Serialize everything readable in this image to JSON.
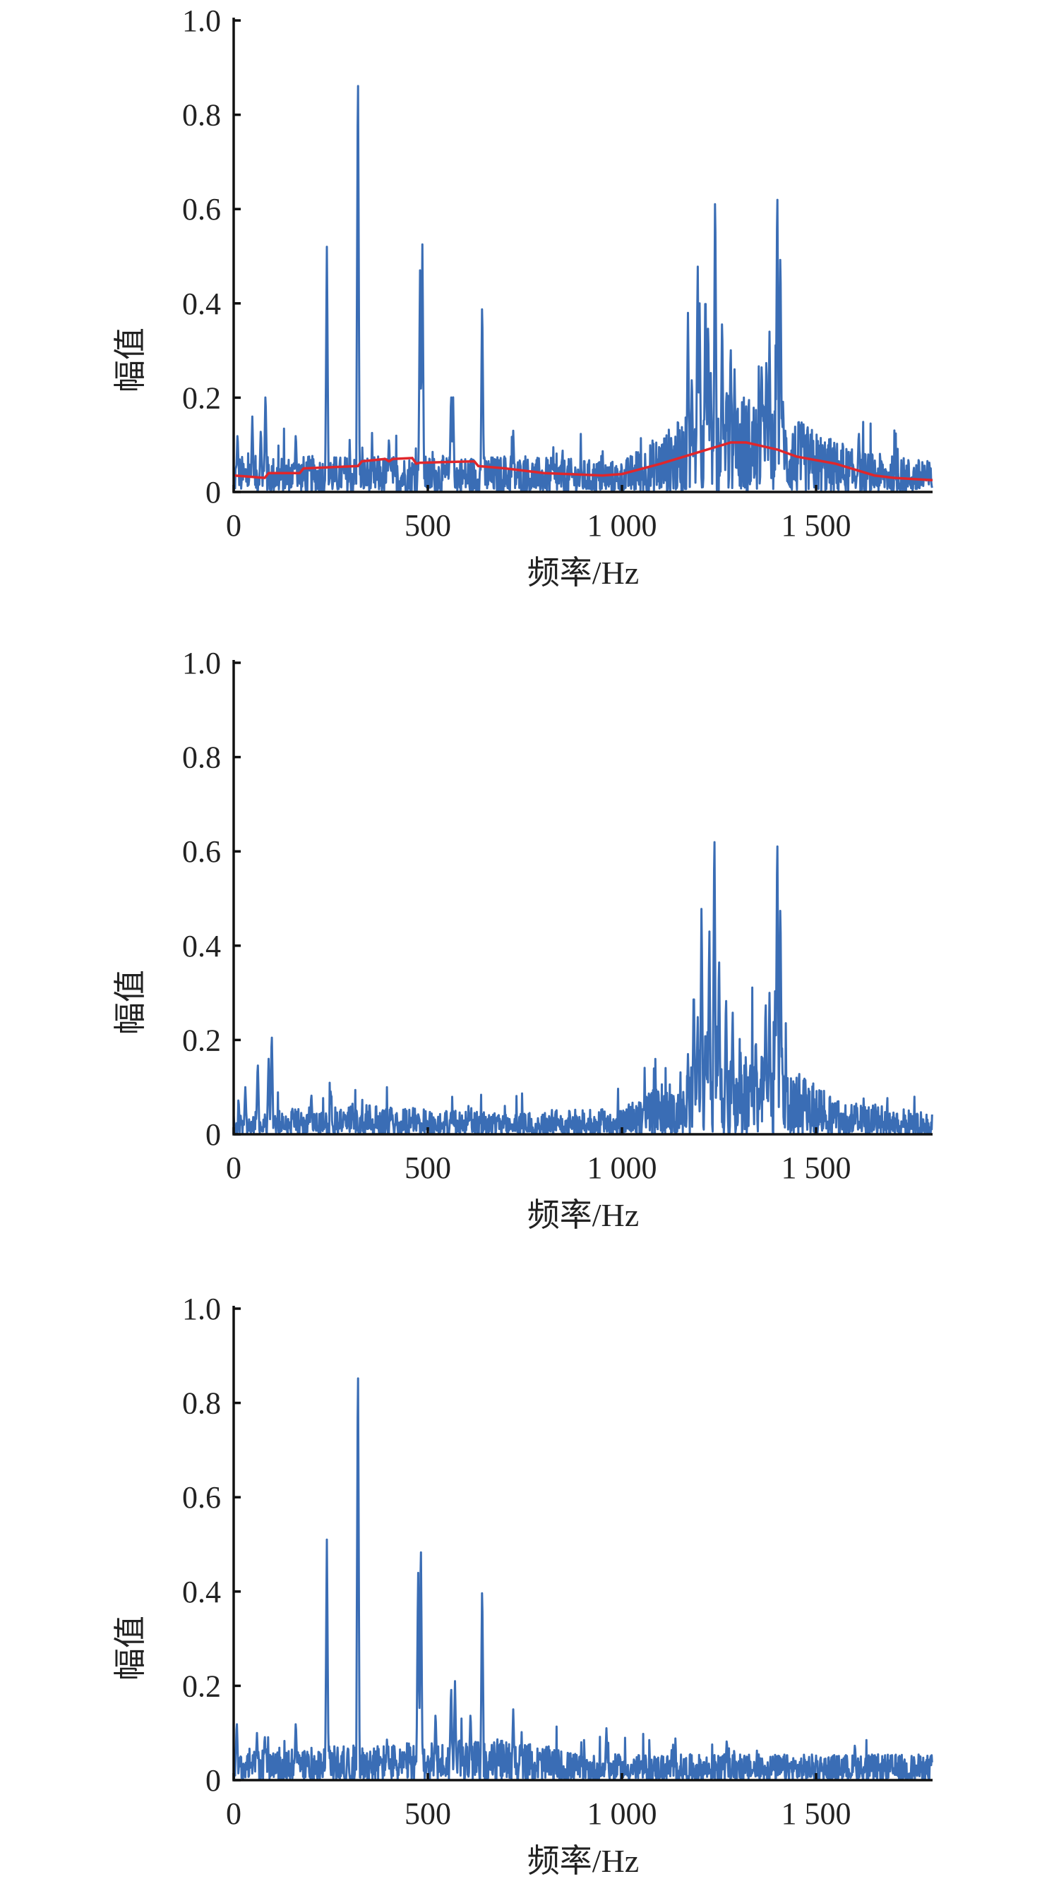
{
  "chart_data": [
    {
      "type": "line",
      "xlabel": "频率/Hz",
      "ylabel": "幅值",
      "xlim": [
        0,
        1800
      ],
      "ylim": [
        0,
        1.0
      ],
      "xticks": [
        0,
        500,
        1000,
        1500
      ],
      "xtick_labels": [
        "0",
        "500",
        "1 000",
        "1 500"
      ],
      "yticks": [
        0,
        0.2,
        0.4,
        0.6,
        0.8,
        1.0
      ],
      "ytick_labels": [
        "0",
        "0.2",
        "0.4",
        "0.6",
        "0.8",
        "1.0"
      ],
      "grid": false,
      "series_color": "#3a6db5",
      "noise_floor": [
        [
          0,
          0.035
        ],
        [
          700,
          0.035
        ],
        [
          1000,
          0.03
        ],
        [
          1150,
          0.07
        ],
        [
          1300,
          0.1
        ],
        [
          1450,
          0.07
        ],
        [
          1600,
          0.04
        ],
        [
          1800,
          0.03
        ]
      ],
      "peaks": [
        [
          10,
          0.13
        ],
        [
          48,
          0.16
        ],
        [
          70,
          0.14
        ],
        [
          82,
          0.22
        ],
        [
          160,
          0.13
        ],
        [
          240,
          0.52
        ],
        [
          320,
          0.945
        ],
        [
          400,
          0.12
        ],
        [
          480,
          0.47
        ],
        [
          486,
          0.525
        ],
        [
          560,
          0.22
        ],
        [
          565,
          0.21
        ],
        [
          640,
          0.425
        ],
        [
          720,
          0.13
        ],
        [
          1170,
          0.38
        ],
        [
          1180,
          0.26
        ],
        [
          1195,
          0.5
        ],
        [
          1200,
          0.4
        ],
        [
          1215,
          0.46
        ],
        [
          1222,
          0.38
        ],
        [
          1240,
          0.67
        ],
        [
          1258,
          0.39
        ],
        [
          1270,
          0.23
        ],
        [
          1280,
          0.33
        ],
        [
          1290,
          0.26
        ],
        [
          1360,
          0.29
        ],
        [
          1372,
          0.3
        ],
        [
          1380,
          0.34
        ],
        [
          1400,
          0.68
        ],
        [
          1408,
          0.54
        ],
        [
          1415,
          0.2
        ],
        [
          1610,
          0.135
        ]
      ],
      "envelope": {
        "color": "#e0262b",
        "points": [
          [
            0,
            0.035
          ],
          [
            80,
            0.03
          ],
          [
            90,
            0.04
          ],
          [
            170,
            0.04
          ],
          [
            180,
            0.05
          ],
          [
            320,
            0.055
          ],
          [
            330,
            0.065
          ],
          [
            390,
            0.07
          ],
          [
            400,
            0.065
          ],
          [
            410,
            0.07
          ],
          [
            460,
            0.072
          ],
          [
            470,
            0.06
          ],
          [
            480,
            0.062
          ],
          [
            620,
            0.065
          ],
          [
            630,
            0.055
          ],
          [
            700,
            0.05
          ],
          [
            800,
            0.04
          ],
          [
            950,
            0.035
          ],
          [
            1000,
            0.038
          ],
          [
            1100,
            0.06
          ],
          [
            1200,
            0.085
          ],
          [
            1280,
            0.105
          ],
          [
            1320,
            0.105
          ],
          [
            1400,
            0.09
          ],
          [
            1450,
            0.075
          ],
          [
            1550,
            0.06
          ],
          [
            1650,
            0.035
          ],
          [
            1700,
            0.03
          ],
          [
            1800,
            0.025
          ]
        ]
      }
    },
    {
      "type": "line",
      "xlabel": "频率/Hz",
      "ylabel": "幅值",
      "xlim": [
        0,
        1800
      ],
      "ylim": [
        0,
        1.0
      ],
      "xticks": [
        0,
        500,
        1000,
        1500
      ],
      "xtick_labels": [
        "0",
        "500",
        "1 000",
        "1 500"
      ],
      "yticks": [
        0,
        0.2,
        0.4,
        0.6,
        0.8,
        1.0
      ],
      "ytick_labels": [
        "0",
        "0.2",
        "0.4",
        "0.6",
        "0.8",
        "1.0"
      ],
      "grid": false,
      "series_color": "#3a6db5",
      "noise_floor": [
        [
          0,
          0.02
        ],
        [
          300,
          0.03
        ],
        [
          600,
          0.022
        ],
        [
          1000,
          0.025
        ],
        [
          1150,
          0.06
        ],
        [
          1300,
          0.09
        ],
        [
          1450,
          0.06
        ],
        [
          1550,
          0.035
        ],
        [
          1800,
          0.02
        ]
      ],
      "peaks": [
        [
          30,
          0.1
        ],
        [
          62,
          0.16
        ],
        [
          90,
          0.16
        ],
        [
          98,
          0.225
        ],
        [
          200,
          0.09
        ],
        [
          250,
          0.1
        ],
        [
          1170,
          0.17
        ],
        [
          1185,
          0.33
        ],
        [
          1195,
          0.26
        ],
        [
          1205,
          0.5
        ],
        [
          1215,
          0.24
        ],
        [
          1225,
          0.45
        ],
        [
          1238,
          0.68
        ],
        [
          1250,
          0.4
        ],
        [
          1268,
          0.31
        ],
        [
          1285,
          0.27
        ],
        [
          1345,
          0.2
        ],
        [
          1370,
          0.3
        ],
        [
          1380,
          0.3
        ],
        [
          1395,
          0.35
        ],
        [
          1400,
          0.67
        ],
        [
          1408,
          0.52
        ],
        [
          1412,
          0.2
        ]
      ]
    },
    {
      "type": "line",
      "xlabel": "频率/Hz",
      "ylabel": "幅值",
      "xlim": [
        0,
        1800
      ],
      "ylim": [
        0,
        1.0
      ],
      "xticks": [
        0,
        500,
        1000,
        1500
      ],
      "xtick_labels": [
        "0",
        "500",
        "1 000",
        "1 500"
      ],
      "yticks": [
        0,
        0.2,
        0.4,
        0.6,
        0.8,
        1.0
      ],
      "ytick_labels": [
        "0",
        "0.2",
        "0.4",
        "0.6",
        "0.8",
        "1.0"
      ],
      "grid": false,
      "series_color": "#3a6db5",
      "noise_floor": [
        [
          0,
          0.03
        ],
        [
          400,
          0.035
        ],
        [
          700,
          0.04
        ],
        [
          900,
          0.025
        ],
        [
          1800,
          0.025
        ]
      ],
      "peaks": [
        [
          8,
          0.13
        ],
        [
          60,
          0.1
        ],
        [
          80,
          0.1
        ],
        [
          160,
          0.13
        ],
        [
          240,
          0.51
        ],
        [
          320,
          0.935
        ],
        [
          395,
          0.09
        ],
        [
          475,
          0.46
        ],
        [
          482,
          0.53
        ],
        [
          520,
          0.15
        ],
        [
          560,
          0.21
        ],
        [
          570,
          0.21
        ],
        [
          610,
          0.15
        ],
        [
          640,
          0.435
        ],
        [
          720,
          0.15
        ],
        [
          960,
          0.11
        ],
        [
          1270,
          0.09
        ],
        [
          1600,
          0.08
        ]
      ]
    }
  ]
}
